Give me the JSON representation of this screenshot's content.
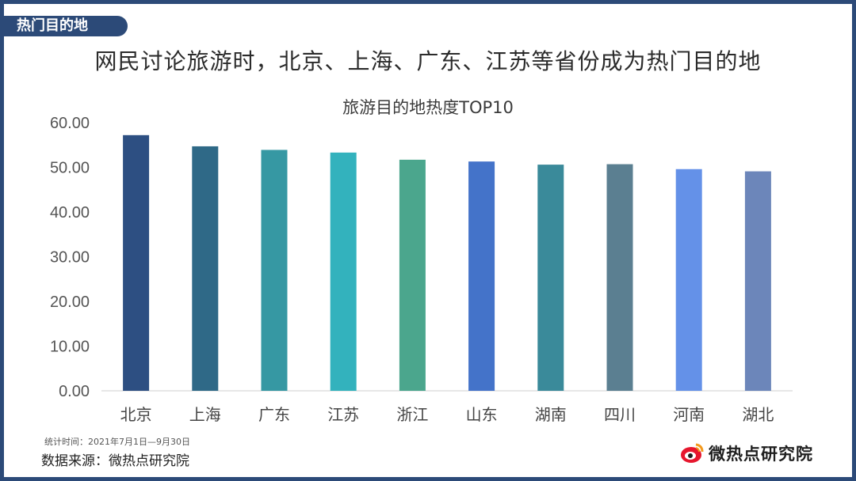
{
  "header": {
    "section_tab": "热门目的地",
    "headline": "网民讨论旅游时，北京、上海、广东、江苏等省份成为热门目的地"
  },
  "footer": {
    "stat_time": "统计时间：2021年7月1日—9月30日",
    "source": "数据来源：微热点研究院",
    "logo_text": "微热点研究院",
    "logo_icon": "weibo-eye-icon"
  },
  "chart_data": {
    "type": "bar",
    "title": "旅游目的地热度TOP10",
    "xlabel": "",
    "ylabel": "",
    "categories": [
      "北京",
      "上海",
      "广东",
      "江苏",
      "浙江",
      "山东",
      "湖南",
      "四川",
      "河南",
      "湖北"
    ],
    "values": [
      57.2,
      54.7,
      53.9,
      53.3,
      51.7,
      51.3,
      50.6,
      50.7,
      49.6,
      49.1
    ],
    "colors": [
      "#2d4f82",
      "#2f6987",
      "#3698a3",
      "#33b2bd",
      "#4ba68d",
      "#4473c9",
      "#3a8a9a",
      "#5b7f91",
      "#6491e8",
      "#6c86ba"
    ],
    "ylim": [
      0,
      60
    ],
    "yticks": [
      "0.00",
      "10.00",
      "20.00",
      "30.00",
      "40.00",
      "50.00",
      "60.00"
    ],
    "grid": false,
    "legend": "none"
  }
}
